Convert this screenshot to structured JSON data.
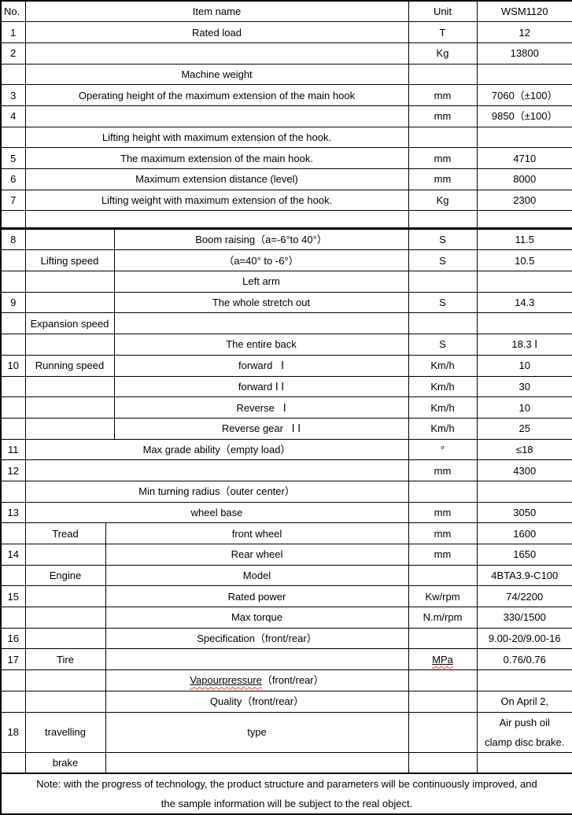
{
  "columns": {
    "no": "No.",
    "item": "Item name",
    "unit": "Unit",
    "model": "WSM1120"
  },
  "rows": [
    {
      "no": "1",
      "layout": "full",
      "item": "Rated load",
      "unit": "T",
      "value": "12"
    },
    {
      "no": "2",
      "layout": "full",
      "item": "",
      "unit": "Kg",
      "value": "13800"
    },
    {
      "no": "",
      "layout": "full",
      "item": "Machine weight",
      "unit": "",
      "value": ""
    },
    {
      "no": "3",
      "layout": "full",
      "item": "Operating height of the maximum extension of the main hook",
      "unit": "mm",
      "value": "7060（±100）"
    },
    {
      "no": "4",
      "layout": "full",
      "item": "",
      "unit": "mm",
      "value": "9850（±100）"
    },
    {
      "no": "",
      "layout": "full",
      "item": "Lifting height with maximum extension of the hook.",
      "unit": "",
      "value": ""
    },
    {
      "no": "5",
      "layout": "full",
      "item": "The maximum extension of the main hook.",
      "unit": "mm",
      "value": "4710"
    },
    {
      "no": "6",
      "layout": "full",
      "item": "Maximum extension distance (level)",
      "unit": "mm",
      "value": "8000"
    },
    {
      "no": "7",
      "layout": "full",
      "item": "Lifting weight with maximum extension of the hook.",
      "unit": "Kg",
      "value": "2300"
    },
    {
      "no": "",
      "layout": "full",
      "item": "",
      "unit": "",
      "value": "",
      "cls": "short"
    },
    {
      "no": "8",
      "layout": "upper",
      "label": "",
      "item": "Boom raising（a=-6°to 40°）",
      "unit": "S",
      "value": "11.5",
      "thick_top": true
    },
    {
      "no": "",
      "layout": "upper",
      "label": "Lifting speed",
      "item": "（a=40° to -6°）",
      "unit": "S",
      "value": "10.5"
    },
    {
      "no": "",
      "layout": "upper",
      "label": "",
      "item": "Left arm",
      "unit": "",
      "value": ""
    },
    {
      "no": "9",
      "layout": "upper",
      "label": "",
      "item": "The whole stretch out",
      "unit": "S",
      "value": "14.3"
    },
    {
      "no": "",
      "layout": "upper",
      "label": "Expansion speed",
      "item": "",
      "unit": "",
      "value": ""
    },
    {
      "no": "",
      "layout": "upper",
      "label": "",
      "item": "The entire back",
      "unit": "S",
      "value": "18.3 Ⅰ"
    },
    {
      "no": "10",
      "layout": "upper",
      "label": "Running speed",
      "item": "forward   Ⅰ",
      "unit": "Km/h",
      "value": "10"
    },
    {
      "no": "",
      "layout": "upper",
      "label": "",
      "item": "forward Ⅰ Ⅰ",
      "unit": "Km/h",
      "value": "30"
    },
    {
      "no": "",
      "layout": "upper",
      "label": "",
      "item": "Reverse   Ⅰ",
      "unit": "Km/h",
      "value": "10"
    },
    {
      "no": "",
      "layout": "upper",
      "label": "",
      "item": "Reverse gear   Ⅰ Ⅰ",
      "unit": "Km/h",
      "value": "25"
    },
    {
      "no": "11",
      "layout": "full",
      "item": "Max grade ability（empty load）",
      "unit": "°",
      "value": "≤18"
    },
    {
      "no": "12",
      "layout": "full",
      "item": "",
      "unit": "mm",
      "value": "4300"
    },
    {
      "no": "",
      "layout": "full",
      "item": "Min turning radius（outer center）",
      "unit": "",
      "value": ""
    },
    {
      "no": "13",
      "layout": "full",
      "item": "wheel base",
      "unit": "mm",
      "value": "3050"
    },
    {
      "no": "",
      "layout": "lower",
      "label": "Tread",
      "item": "front wheel",
      "unit": "mm",
      "value": "1600"
    },
    {
      "no": "14",
      "layout": "lower",
      "label": "",
      "item": "Rear wheel",
      "unit": "mm",
      "value": "1650"
    },
    {
      "no": "",
      "layout": "lower",
      "label": "Engine",
      "item": "Model",
      "unit": "",
      "value": "4BTA3.9-C100"
    },
    {
      "no": "15",
      "layout": "lower",
      "label": "",
      "item": "Rated power",
      "unit": "Kw/rpm",
      "value": "74/2200"
    },
    {
      "no": "",
      "layout": "lower",
      "label": "",
      "item": "Max torque",
      "unit": "N.m/rpm",
      "value": "330/1500"
    },
    {
      "no": "16",
      "layout": "lower",
      "label": "",
      "item": "Specification（front/rear）",
      "unit": "",
      "value": "9.00-20/9.00-16"
    },
    {
      "no": "17",
      "layout": "lower",
      "label": "Tire",
      "item": "",
      "unit": "MPa",
      "value": "0.76/0.76",
      "wavy_unit": true
    },
    {
      "no": "",
      "layout": "lower",
      "label": "",
      "item": "Vapourpressure（front/rear）",
      "unit": "",
      "value": "",
      "wavy_item": true
    },
    {
      "no": "",
      "layout": "lower",
      "label": "",
      "item": "Quality（front/rear）",
      "unit": "",
      "value": "On April 2,"
    },
    {
      "no": "18",
      "layout": "lower",
      "label": "travelling",
      "item": "type",
      "unit": "",
      "value": "Air push oil\nclamp disc brake.",
      "cls": "tall"
    },
    {
      "no": "",
      "layout": "lower",
      "label": "brake",
      "item": "",
      "unit": "",
      "value": ""
    }
  ],
  "note": "Note: with the progress of technology, the product structure and parameters will be continuously improved, and\nthe sample information will be subject to the real object.",
  "colors": {
    "border": "#000000",
    "text": "#000000",
    "spellcheck_wave": "#d8453c",
    "background": "#ffffff"
  }
}
